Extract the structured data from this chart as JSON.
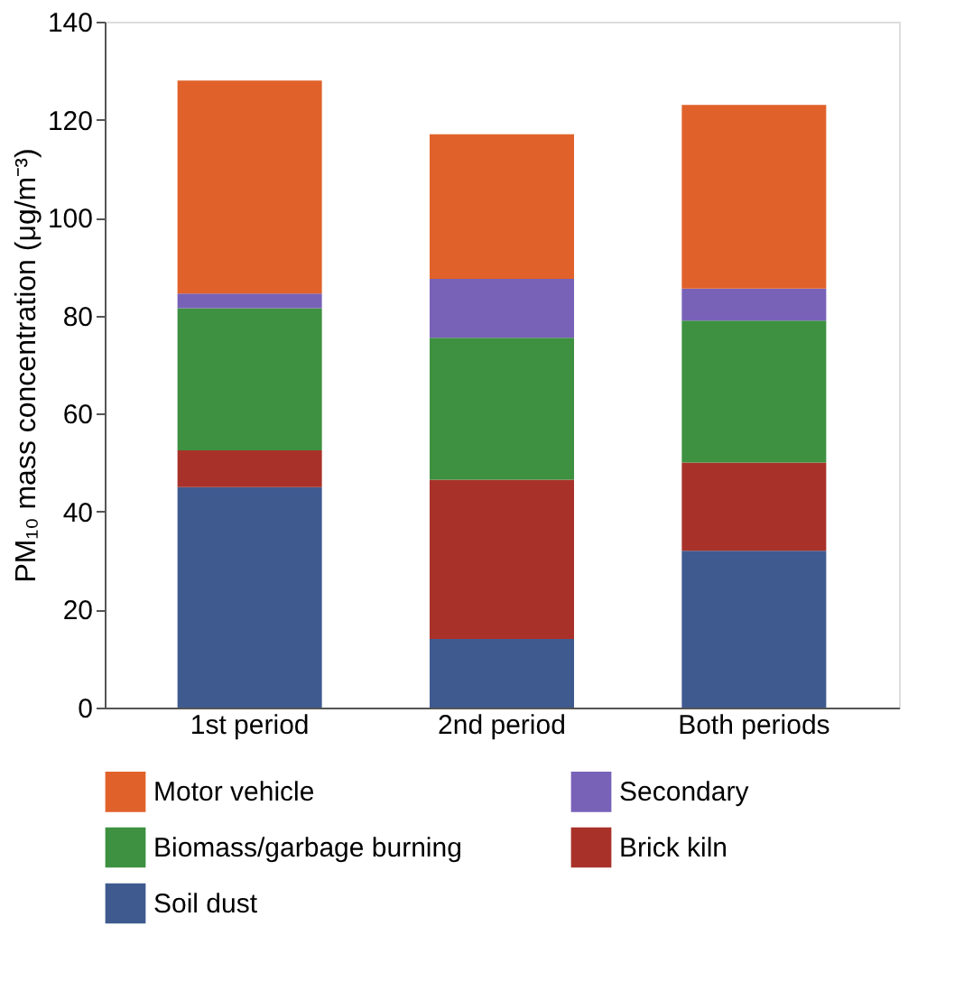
{
  "chart_data": {
    "type": "bar",
    "stacked": true,
    "ylabel": "PM₁₀ mass concentration (μg/m⁻³)",
    "categories": [
      "1st period",
      "2nd period",
      "Both periods"
    ],
    "series": [
      {
        "name": "Soil dust",
        "color": "#3f5a8f",
        "values": [
          45,
          14,
          32
        ]
      },
      {
        "name": "Brick kiln",
        "color": "#a8322a",
        "values": [
          7.5,
          32.5,
          18
        ]
      },
      {
        "name": "Biomass/garbage burning",
        "color": "#3d9140",
        "values": [
          29,
          29,
          29
        ]
      },
      {
        "name": "Secondary",
        "color": "#7862b8",
        "values": [
          3,
          12,
          6.5
        ]
      },
      {
        "name": "Motor vehicle",
        "color": "#e0622a",
        "values": [
          43.5,
          29.5,
          37.5
        ]
      }
    ],
    "ylim": [
      0,
      140
    ],
    "yticks": [
      0,
      20,
      40,
      60,
      80,
      100,
      120,
      140
    ],
    "grid": false,
    "legend": "bottom"
  }
}
